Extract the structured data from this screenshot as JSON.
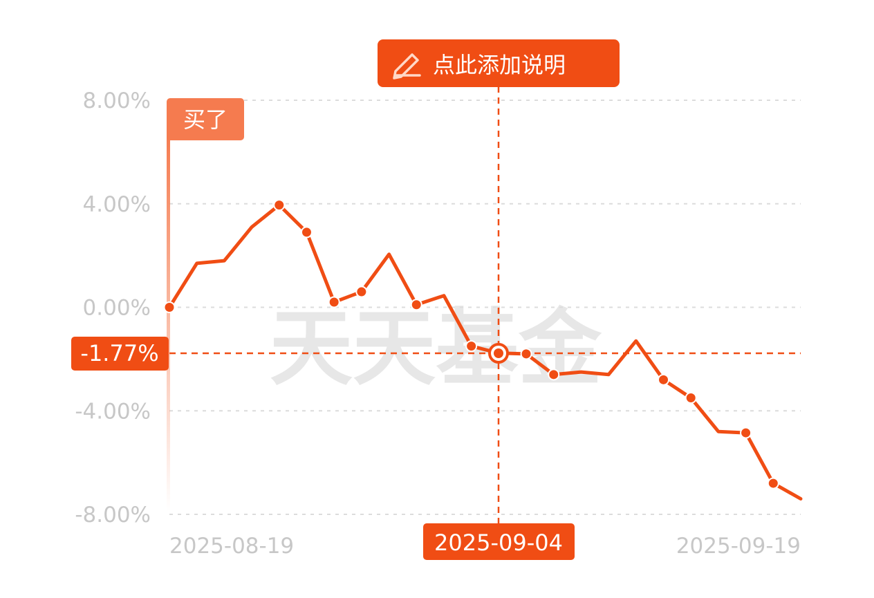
{
  "colors": {
    "accent": "#f04d14",
    "buy_tag": "#f57b4f",
    "grid": "#dcdcdc",
    "tick_text": "#c7c7c7",
    "watermark": "#e7e7e7"
  },
  "annotation_button": {
    "label": "点此添加说明",
    "icon": "pencil-icon"
  },
  "buy_marker": {
    "label": "买了",
    "date": "2025-08-19"
  },
  "watermark": "天天基金",
  "crosshair": {
    "date_label": "2025-09-04",
    "value_label": "-1.77%",
    "index": 12
  },
  "chart_data": {
    "type": "line",
    "ylim": [
      -8,
      8
    ],
    "yticks": [
      "8.00%",
      "4.00%",
      "0.00%",
      "-4.00%",
      "-8.00%"
    ],
    "ytick_values": [
      8,
      4,
      0,
      -4,
      -8
    ],
    "xtick_labels": [
      "2025-08-19",
      "2025-09-19"
    ],
    "grid": true,
    "series": [
      {
        "values": [
          0.0,
          1.7,
          1.8,
          3.1,
          3.95,
          2.9,
          0.2,
          0.6,
          2.05,
          0.1,
          0.45,
          -1.5,
          -1.77,
          -1.8,
          -2.6,
          -2.5,
          -2.6,
          -1.3,
          -2.8,
          -3.5,
          -4.8,
          -4.85,
          -6.8,
          -7.4
        ],
        "markers": [
          0,
          4,
          5,
          6,
          7,
          9,
          11,
          12,
          13,
          14,
          18,
          19,
          21,
          22
        ]
      }
    ]
  }
}
